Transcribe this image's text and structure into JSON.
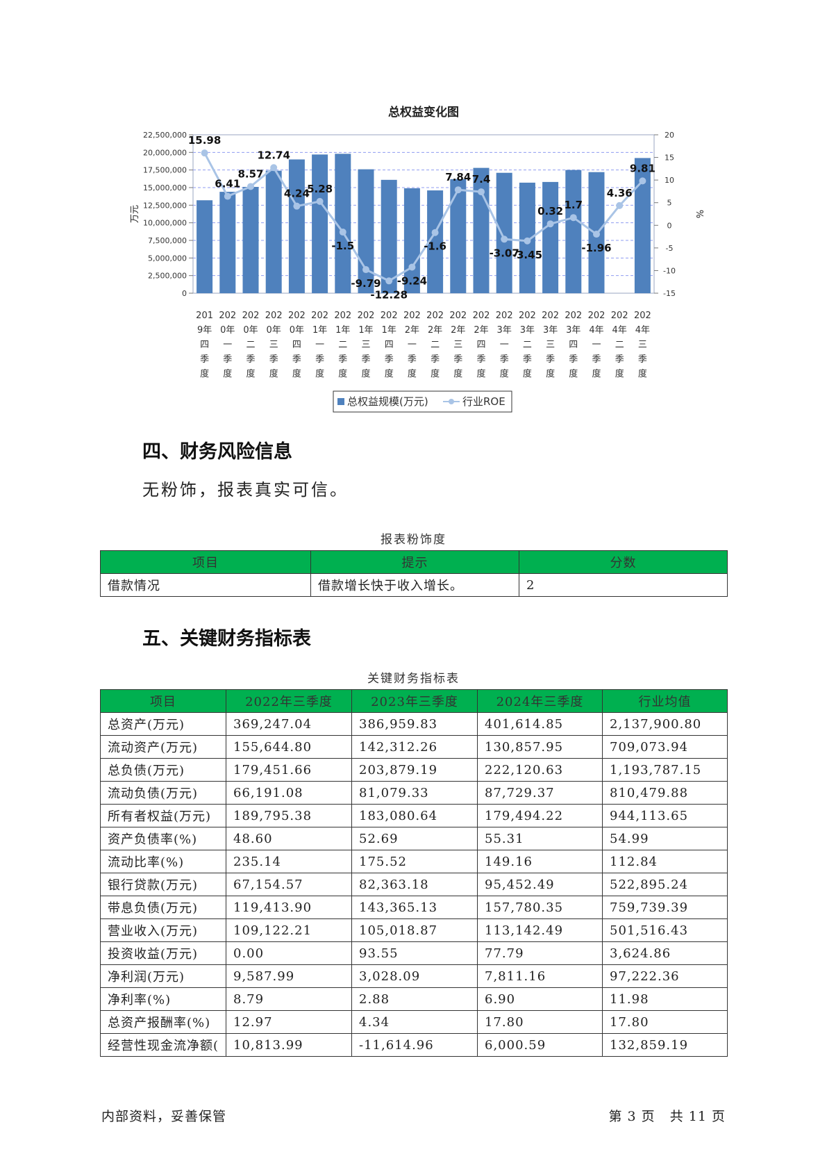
{
  "chart_data": {
    "type": "bar",
    "title": "总权益变化图",
    "ylabel": "万元",
    "y2label": "%",
    "ylim": [
      0,
      22500000
    ],
    "y2lim": [
      -15,
      20
    ],
    "y_ticks": [
      "0",
      "2,500,000",
      "5,000,000",
      "7,500,000",
      "10,000,000",
      "12,500,000",
      "15,000,000",
      "17,500,000",
      "20,000,000",
      "22,500,000"
    ],
    "y2_ticks": [
      "-15",
      "-10",
      "-5",
      "0",
      "5",
      "10",
      "15",
      "20"
    ],
    "categories": [
      [
        "201",
        "9年",
        "四",
        "季",
        "度"
      ],
      [
        "202",
        "0年",
        "一",
        "季",
        "度"
      ],
      [
        "202",
        "0年",
        "二",
        "季",
        "度"
      ],
      [
        "202",
        "0年",
        "三",
        "季",
        "度"
      ],
      [
        "202",
        "0年",
        "四",
        "季",
        "度"
      ],
      [
        "202",
        "1年",
        "一",
        "季",
        "度"
      ],
      [
        "202",
        "1年",
        "二",
        "季",
        "度"
      ],
      [
        "202",
        "1年",
        "三",
        "季",
        "度"
      ],
      [
        "202",
        "1年",
        "四",
        "季",
        "度"
      ],
      [
        "202",
        "2年",
        "一",
        "季",
        "度"
      ],
      [
        "202",
        "2年",
        "二",
        "季",
        "度"
      ],
      [
        "202",
        "2年",
        "三",
        "季",
        "度"
      ],
      [
        "202",
        "2年",
        "四",
        "季",
        "度"
      ],
      [
        "202",
        "3年",
        "一",
        "季",
        "度"
      ],
      [
        "202",
        "3年",
        "二",
        "季",
        "度"
      ],
      [
        "202",
        "3年",
        "三",
        "季",
        "度"
      ],
      [
        "202",
        "3年",
        "四",
        "季",
        "度"
      ],
      [
        "202",
        "4年",
        "一",
        "季",
        "度"
      ],
      [
        "202",
        "4年",
        "二",
        "季",
        "度"
      ],
      [
        "202",
        "4年",
        "三",
        "季",
        "度"
      ]
    ],
    "series": [
      {
        "name": "总权益规模(万元)",
        "type": "bar",
        "color": "#4f81bd",
        "values": [
          13200000,
          14400000,
          15100000,
          17400000,
          19000000,
          19700000,
          19800000,
          17600000,
          16100000,
          14900000,
          14600000,
          16200000,
          17800000,
          17100000,
          15700000,
          15800000,
          17500000,
          17200000,
          null,
          19200000
        ]
      },
      {
        "name": "行业ROE",
        "type": "line",
        "color": "#a9c4e6",
        "values": [
          15.98,
          6.41,
          8.57,
          12.74,
          4.24,
          5.28,
          -1.5,
          -9.79,
          -12.28,
          -9.24,
          -1.6,
          7.84,
          7.4,
          -3.07,
          -3.45,
          0.32,
          1.7,
          -1.96,
          4.36,
          9.81
        ],
        "labels": [
          "15.98",
          "6.41",
          "8.57",
          "12.74",
          "4.24",
          "5.28",
          "-1.5",
          "-9.79",
          "-12.28",
          "-9.24",
          "-1.6",
          "7.84",
          "7.4",
          "-3.07",
          "-3.45",
          "0.32",
          "1.7",
          "-1.96",
          "4.36",
          "9.81"
        ]
      }
    ]
  },
  "section4": {
    "heading": "四、财务风险信息",
    "paragraph": "无粉饰，报表真实可信。",
    "caption": "报表粉饰度",
    "headers": [
      "项目",
      "提示",
      "分数"
    ],
    "rows": [
      [
        "借款情况",
        "借款增长快于收入增长。",
        "2"
      ]
    ]
  },
  "section5": {
    "heading": "五、关键财务指标表",
    "caption": "关键财务指标表",
    "headers": [
      "项目",
      "2022年三季度",
      "2023年三季度",
      "2024年三季度",
      "行业均值"
    ],
    "rows": [
      [
        "总资产(万元)",
        "369,247.04",
        "386,959.83",
        "401,614.85",
        "2,137,900.80"
      ],
      [
        "流动资产(万元)",
        "155,644.80",
        "142,312.26",
        "130,857.95",
        "709,073.94"
      ],
      [
        "总负债(万元)",
        "179,451.66",
        "203,879.19",
        "222,120.63",
        "1,193,787.15"
      ],
      [
        "流动负债(万元)",
        "66,191.08",
        "81,079.33",
        "87,729.37",
        "810,479.88"
      ],
      [
        "所有者权益(万元)",
        "189,795.38",
        "183,080.64",
        "179,494.22",
        "944,113.65"
      ],
      [
        "资产负债率(%)",
        "48.60",
        "52.69",
        "55.31",
        "54.99"
      ],
      [
        "流动比率(%)",
        "235.14",
        "175.52",
        "149.16",
        "112.84"
      ],
      [
        "银行贷款(万元)",
        "67,154.57",
        "82,363.18",
        "95,452.49",
        "522,895.24"
      ],
      [
        "带息负债(万元)",
        "119,413.90",
        "143,365.13",
        "157,780.35",
        "759,739.39"
      ],
      [
        "营业收入(万元)",
        "109,122.21",
        "105,018.87",
        "113,142.49",
        "501,516.43"
      ],
      [
        "投资收益(万元)",
        "0.00",
        "93.55",
        "77.79",
        "3,624.86"
      ],
      [
        "净利润(万元)",
        "9,587.99",
        "3,028.09",
        "7,811.16",
        "97,222.36"
      ],
      [
        "净利率(%)",
        "8.79",
        "2.88",
        "6.90",
        "11.98"
      ],
      [
        "总资产报酬率(%)",
        "12.97",
        "4.34",
        "17.80",
        "17.80"
      ],
      [
        "经营性现金流净额(",
        "10,813.99",
        "-11,614.96",
        "6,000.59",
        "132,859.19"
      ]
    ]
  },
  "footer": {
    "left": "内部资料，妥善保管",
    "right": "第 3 页   共 11 页"
  }
}
